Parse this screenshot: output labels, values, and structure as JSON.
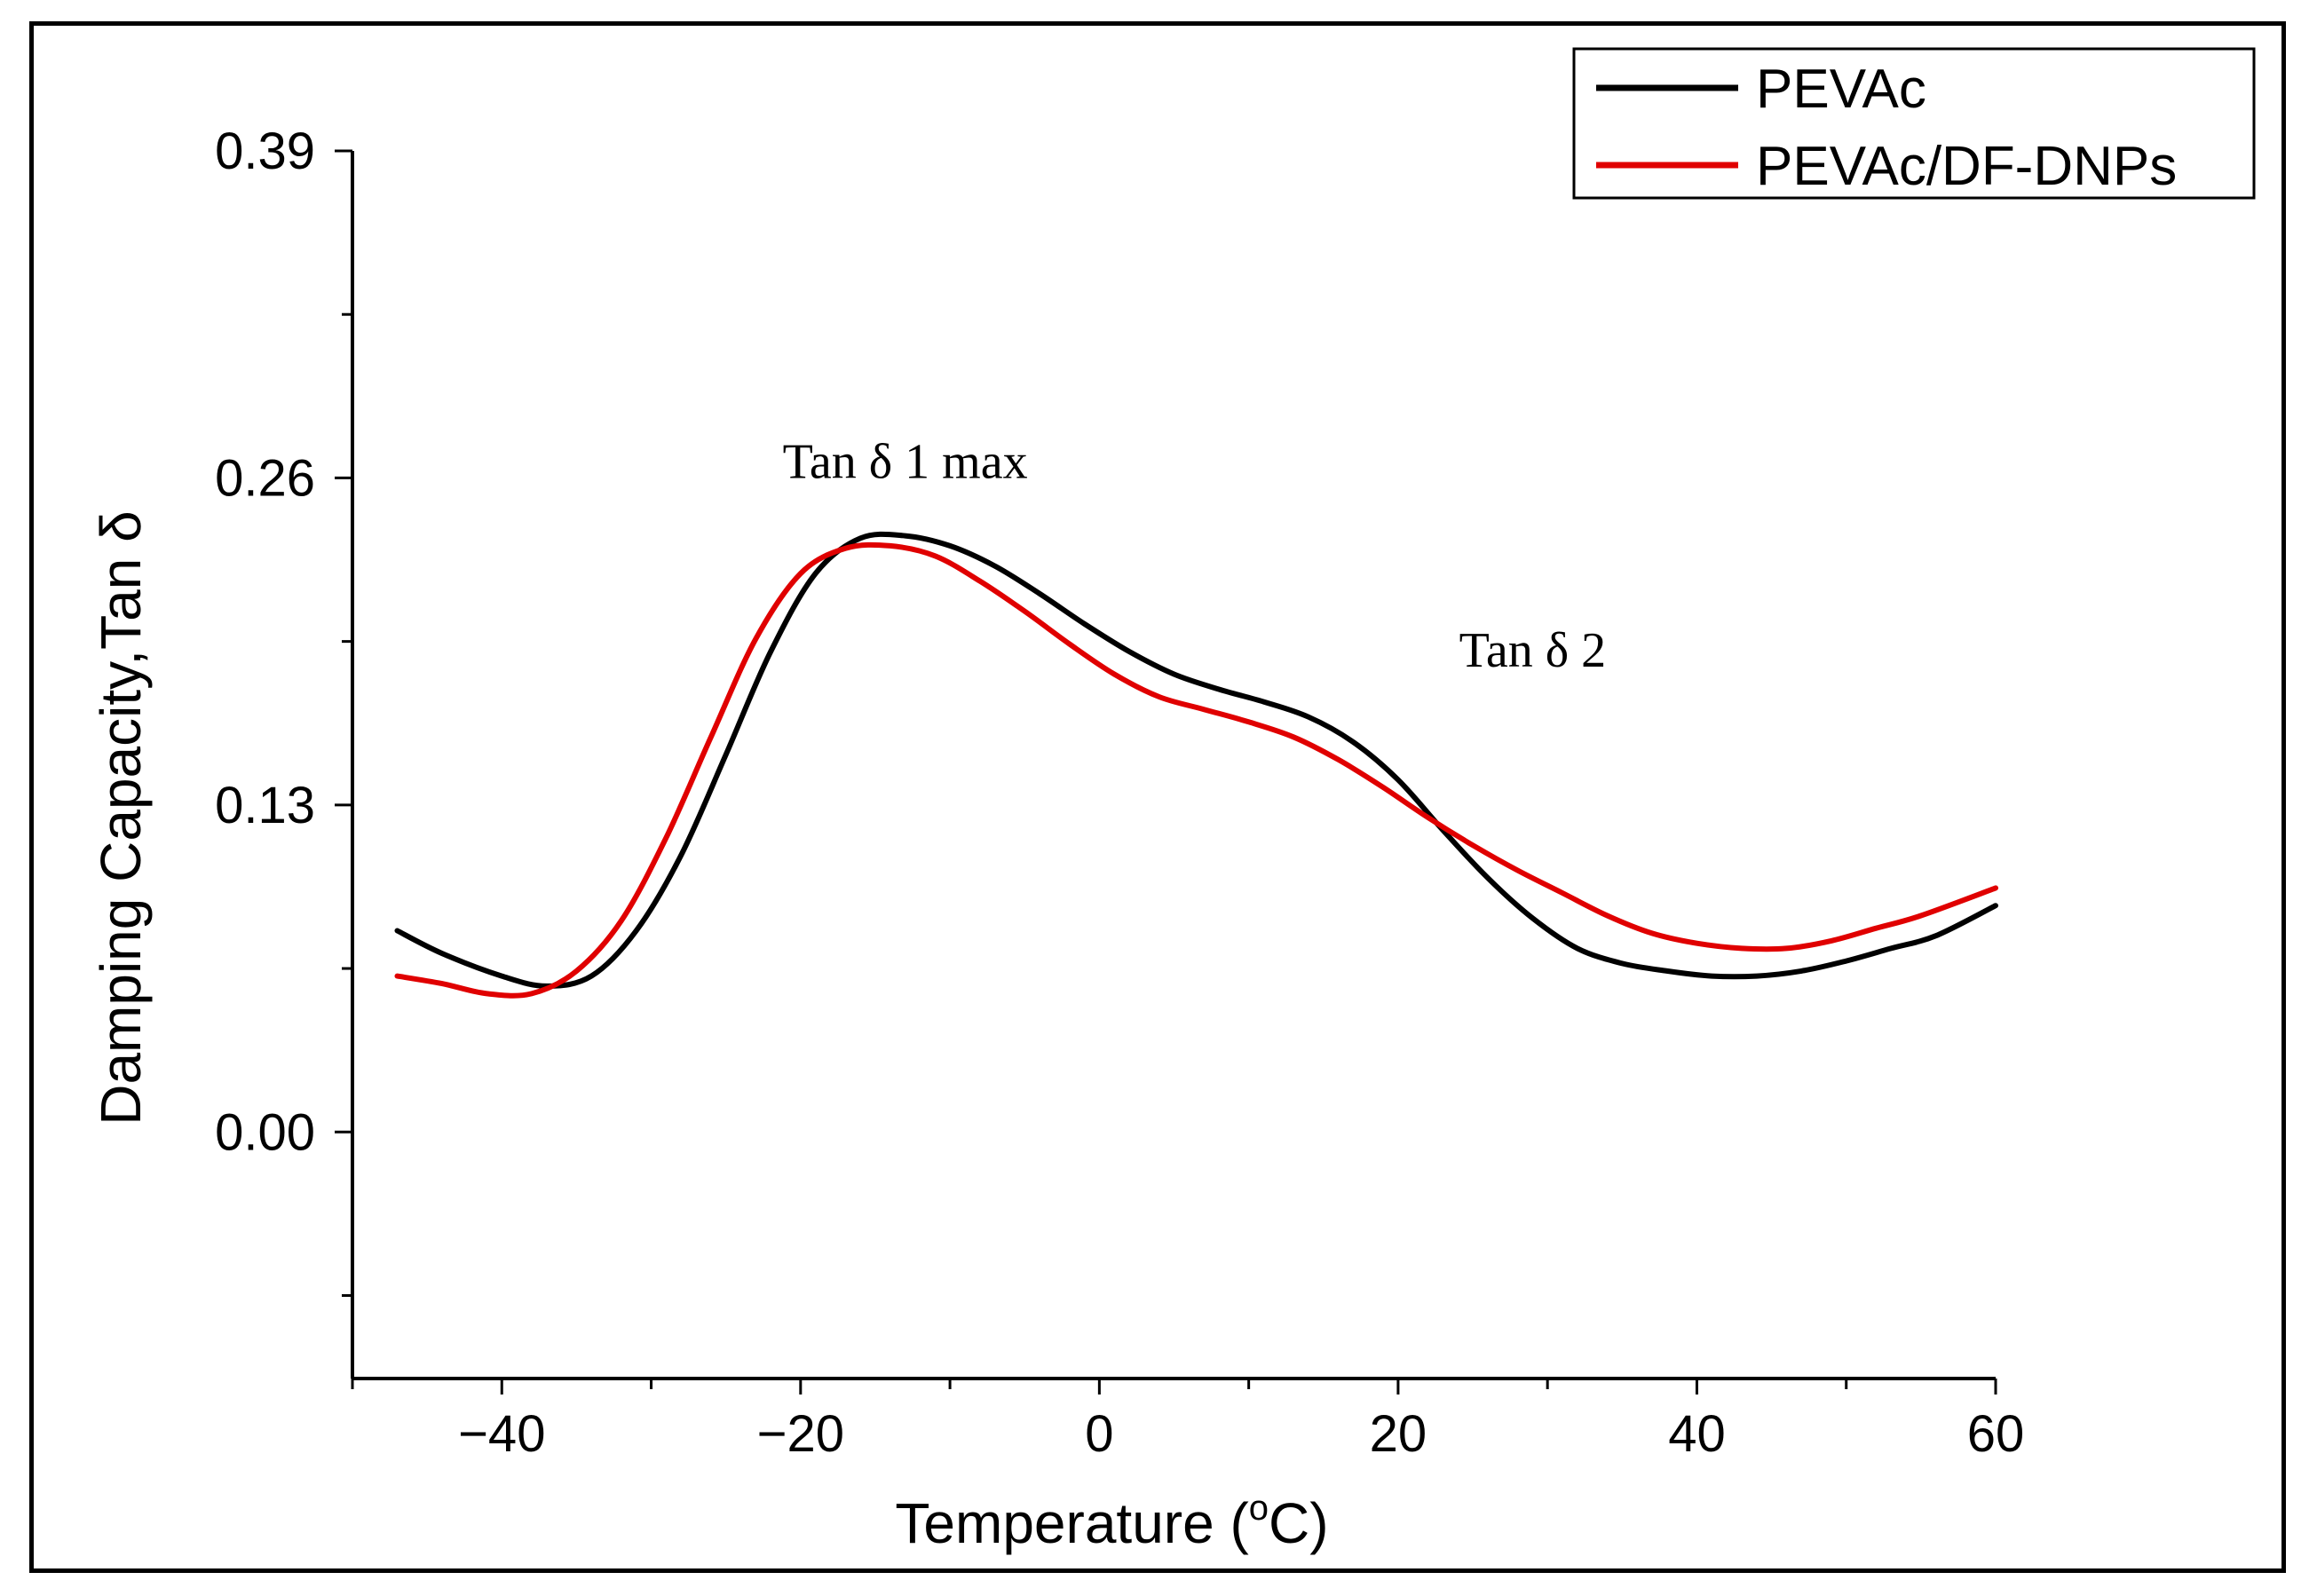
{
  "chart_data": {
    "type": "line",
    "title": "",
    "xlabel": "Temperature (",
    "xlabel_sup": "o",
    "xlabel_end": "C)",
    "ylabel": "Damping Capacity,Tan δ",
    "xlim": [
      -50,
      60
    ],
    "ylim": [
      -0.098,
      0.39
    ],
    "x_ticks": [
      -40,
      -20,
      0,
      20,
      40,
      60
    ],
    "x_tick_labels": [
      "−40",
      "−20",
      "0",
      "20",
      "40",
      "60"
    ],
    "y_ticks": [
      0.0,
      0.13,
      0.26,
      0.39
    ],
    "y_tick_labels": [
      "0.00",
      "0.13",
      "0.26",
      "0.39"
    ],
    "series": [
      {
        "name": "PEVAc",
        "color": "#000000",
        "x": [
          -47,
          -44,
          -40,
          -37,
          -34,
          -31,
          -28,
          -25,
          -22,
          -19,
          -16,
          -13,
          -10,
          -7,
          -4,
          -1,
          2,
          5,
          8,
          11,
          14,
          17,
          20,
          23,
          26,
          29,
          32,
          35,
          38,
          41,
          44,
          47,
          50,
          53,
          56,
          60
        ],
        "y": [
          0.08,
          0.071,
          0.062,
          0.058,
          0.062,
          0.08,
          0.11,
          0.15,
          0.191,
          0.222,
          0.236,
          0.237,
          0.233,
          0.225,
          0.214,
          0.202,
          0.191,
          0.182,
          0.176,
          0.171,
          0.165,
          0.155,
          0.14,
          0.12,
          0.101,
          0.085,
          0.073,
          0.067,
          0.064,
          0.062,
          0.062,
          0.064,
          0.068,
          0.073,
          0.078,
          0.09
        ]
      },
      {
        "name": "PEVAc/DF-DNPs",
        "color": "#e00000",
        "x": [
          -47,
          -44,
          -41,
          -38,
          -35,
          -32,
          -29,
          -26,
          -23,
          -20,
          -17,
          -14,
          -11,
          -8,
          -5,
          -2,
          1,
          4,
          7,
          10,
          13,
          16,
          19,
          22,
          25,
          28,
          31,
          34,
          37,
          40,
          43,
          46,
          49,
          52,
          55,
          60
        ],
        "y": [
          0.062,
          0.059,
          0.055,
          0.055,
          0.064,
          0.084,
          0.117,
          0.157,
          0.196,
          0.222,
          0.232,
          0.233,
          0.229,
          0.219,
          0.207,
          0.194,
          0.182,
          0.173,
          0.168,
          0.163,
          0.157,
          0.148,
          0.137,
          0.125,
          0.114,
          0.104,
          0.095,
          0.086,
          0.079,
          0.075,
          0.073,
          0.073,
          0.076,
          0.081,
          0.086,
          0.097
        ]
      }
    ],
    "legend": {
      "position": "top-right",
      "entries": [
        {
          "label": "PEVAc",
          "color": "#000000"
        },
        {
          "label": "PEVAc/DF-DNPs",
          "color": "#e00000"
        }
      ]
    },
    "annotations": [
      {
        "text": "Tan δ 1 max",
        "x": -13,
        "y": 0.26
      },
      {
        "text": "Tan δ 2",
        "x": 29,
        "y": 0.185
      }
    ]
  }
}
